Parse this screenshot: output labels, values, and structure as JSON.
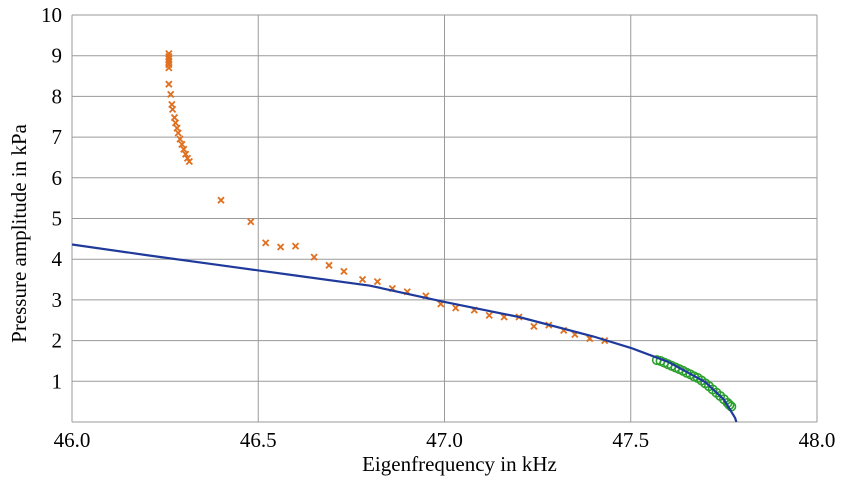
{
  "chart_data": {
    "type": "scatter",
    "title": "",
    "xlabel": "Eigenfrequency in kHz",
    "ylabel": "Pressure amplitude in kPa",
    "xlim": [
      46.0,
      48.0
    ],
    "ylim": [
      0,
      10
    ],
    "x_ticks": [
      "46.0",
      "46.5",
      "47.0",
      "47.5",
      "48.0"
    ],
    "y_ticks": [
      "1",
      "2",
      "3",
      "4",
      "5",
      "6",
      "7",
      "8",
      "9",
      "10"
    ],
    "grid": true,
    "legend": "none",
    "series": [
      {
        "marker": "x",
        "color": "#e07020",
        "points": [
          [
            46.26,
            9.05
          ],
          [
            46.26,
            8.98
          ],
          [
            46.26,
            8.92
          ],
          [
            46.26,
            8.85
          ],
          [
            46.26,
            8.78
          ],
          [
            46.26,
            8.7
          ],
          [
            46.26,
            8.3
          ],
          [
            46.265,
            8.05
          ],
          [
            46.268,
            7.8
          ],
          [
            46.27,
            7.68
          ],
          [
            46.275,
            7.48
          ],
          [
            46.278,
            7.35
          ],
          [
            46.282,
            7.22
          ],
          [
            46.285,
            7.1
          ],
          [
            46.29,
            6.95
          ],
          [
            46.295,
            6.82
          ],
          [
            46.3,
            6.7
          ],
          [
            46.305,
            6.58
          ],
          [
            46.31,
            6.48
          ],
          [
            46.315,
            6.4
          ],
          [
            46.4,
            5.45
          ],
          [
            46.48,
            4.92
          ],
          [
            46.52,
            4.4
          ],
          [
            46.56,
            4.3
          ],
          [
            46.6,
            4.32
          ],
          [
            46.65,
            4.05
          ],
          [
            46.69,
            3.85
          ],
          [
            46.73,
            3.7
          ],
          [
            46.78,
            3.5
          ],
          [
            46.82,
            3.45
          ],
          [
            46.86,
            3.28
          ],
          [
            46.9,
            3.2
          ],
          [
            46.95,
            3.1
          ],
          [
            46.99,
            2.9
          ],
          [
            47.03,
            2.8
          ],
          [
            47.08,
            2.75
          ],
          [
            47.12,
            2.62
          ],
          [
            47.16,
            2.58
          ],
          [
            47.2,
            2.58
          ],
          [
            47.24,
            2.35
          ],
          [
            47.28,
            2.38
          ],
          [
            47.32,
            2.25
          ],
          [
            47.35,
            2.15
          ],
          [
            47.39,
            2.05
          ],
          [
            47.43,
            2.0
          ]
        ]
      },
      {
        "marker": "circle",
        "color": "#2ca02c",
        "points": [
          [
            47.57,
            1.52
          ],
          [
            47.58,
            1.5
          ],
          [
            47.59,
            1.46
          ],
          [
            47.6,
            1.42
          ],
          [
            47.61,
            1.38
          ],
          [
            47.62,
            1.34
          ],
          [
            47.63,
            1.3
          ],
          [
            47.64,
            1.26
          ],
          [
            47.65,
            1.21
          ],
          [
            47.66,
            1.17
          ],
          [
            47.67,
            1.12
          ],
          [
            47.68,
            1.08
          ],
          [
            47.69,
            1.02
          ],
          [
            47.7,
            0.95
          ],
          [
            47.71,
            0.88
          ],
          [
            47.72,
            0.8
          ],
          [
            47.73,
            0.72
          ],
          [
            47.74,
            0.64
          ],
          [
            47.75,
            0.56
          ],
          [
            47.76,
            0.47
          ],
          [
            47.765,
            0.42
          ],
          [
            47.77,
            0.38
          ]
        ]
      },
      {
        "marker": "none",
        "line": true,
        "color": "#1f3a9b",
        "points": [
          [
            46.0,
            4.36
          ],
          [
            46.2,
            4.1
          ],
          [
            46.4,
            3.85
          ],
          [
            46.6,
            3.6
          ],
          [
            46.8,
            3.35
          ],
          [
            47.0,
            2.95
          ],
          [
            47.2,
            2.58
          ],
          [
            47.4,
            2.1
          ],
          [
            47.5,
            1.82
          ],
          [
            47.6,
            1.48
          ],
          [
            47.7,
            0.98
          ],
          [
            47.75,
            0.55
          ],
          [
            47.78,
            0.1
          ],
          [
            47.79,
            -0.2
          ]
        ]
      }
    ]
  }
}
